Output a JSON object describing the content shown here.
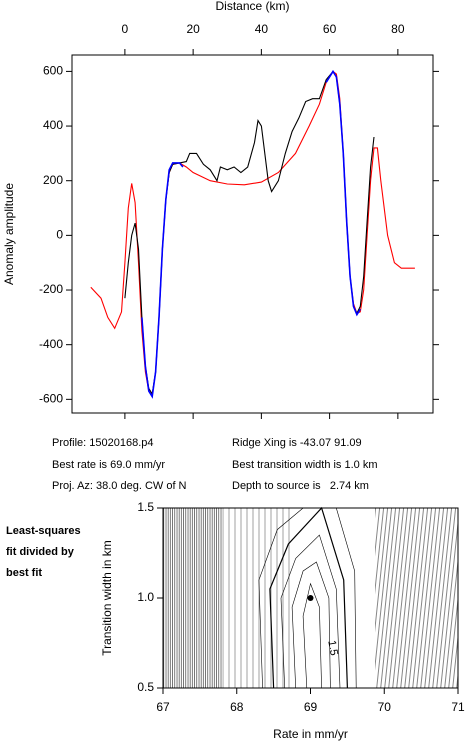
{
  "chart_data": [
    {
      "type": "line",
      "xlabel": "Distance (km)",
      "ylabel": "Anomaly amplitude",
      "xlim": [
        -15.5,
        90.3
      ],
      "ylim": [
        -650,
        660
      ],
      "xticks": [
        0,
        20,
        40,
        60,
        80
      ],
      "yticks": [
        -600,
        -400,
        -200,
        0,
        200,
        400,
        600
      ],
      "series": [
        {
          "color": "#ff0000",
          "x": [
            -10,
            -7,
            -5,
            -3,
            -1,
            0,
            1,
            2,
            3,
            4,
            5,
            6,
            7,
            8,
            9,
            10,
            11,
            12,
            13,
            14,
            16,
            18,
            20,
            25,
            30,
            35,
            40,
            45,
            50,
            54,
            57,
            59,
            61,
            62,
            63,
            64,
            65,
            66,
            67,
            68,
            69,
            70,
            71,
            72,
            73,
            74,
            75,
            77,
            79,
            81,
            85
          ],
          "values": [
            -190,
            -230,
            -300,
            -340,
            -280,
            -100,
            100,
            190,
            120,
            -100,
            -350,
            -500,
            -570,
            -585,
            -500,
            -300,
            -50,
            130,
            230,
            260,
            265,
            250,
            230,
            200,
            188,
            185,
            195,
            230,
            300,
            400,
            480,
            560,
            600,
            590,
            500,
            300,
            50,
            -150,
            -250,
            -285,
            -280,
            -200,
            0,
            200,
            320,
            320,
            200,
            0,
            -100,
            -120,
            -120
          ]
        },
        {
          "color": "#000000",
          "x": [
            0,
            1,
            2,
            3,
            4,
            5,
            6,
            7,
            8,
            9,
            10,
            11,
            12,
            13,
            14,
            16,
            18,
            19,
            21,
            23,
            25,
            27,
            28,
            30,
            32,
            34,
            36,
            38,
            39,
            40,
            41,
            42,
            43,
            45,
            47,
            49,
            51,
            53,
            55,
            57,
            59,
            61,
            62,
            63,
            64,
            65,
            66,
            67,
            68,
            69,
            70,
            71,
            72,
            73
          ],
          "values": [
            -230,
            -100,
            0,
            45,
            -50,
            -300,
            -480,
            -560,
            -580,
            -500,
            -300,
            -50,
            130,
            230,
            260,
            265,
            270,
            300,
            300,
            260,
            240,
            200,
            250,
            240,
            250,
            230,
            250,
            340,
            420,
            400,
            300,
            200,
            160,
            200,
            300,
            380,
            430,
            490,
            500,
            500,
            570,
            600,
            580,
            480,
            300,
            50,
            -150,
            -260,
            -285,
            -260,
            -150,
            50,
            250,
            360
          ]
        },
        {
          "color": "#0000ff",
          "x": [
            5,
            6,
            7,
            8,
            9,
            10,
            11,
            12,
            13,
            14,
            16,
            17,
            null,
            59,
            61,
            62,
            63,
            64,
            65,
            66,
            67,
            68,
            69
          ],
          "values": [
            -300,
            -480,
            -570,
            -590,
            -500,
            -300,
            -50,
            130,
            240,
            265,
            265,
            250,
            null,
            560,
            600,
            580,
            480,
            300,
            50,
            -150,
            -260,
            -290,
            -270
          ]
        }
      ]
    },
    {
      "type": "contour",
      "xlabel": "Rate in mm/yr",
      "ylabel": "Transition width in km",
      "xlim": [
        67,
        71
      ],
      "ylim": [
        0.5,
        1.5
      ],
      "xticks": [
        67,
        68,
        69,
        70,
        71
      ],
      "yticks": [
        0.5,
        {
          "value": 1,
          "label": "1.0"
        },
        1.5
      ],
      "point": {
        "x": 69,
        "y": 1.0
      },
      "annotation": "1.5",
      "contours": [
        {
          "x": [
            68.95,
            68.9,
            69.0,
            69.12,
            69.15
          ],
          "y": [
            0.5,
            0.9,
            1.08,
            0.95,
            0.5
          ]
        },
        {
          "x": [
            68.8,
            68.75,
            68.9,
            69.08,
            69.25,
            69.27
          ],
          "y": [
            0.5,
            0.95,
            1.15,
            1.2,
            1.0,
            0.5
          ]
        },
        {
          "x": [
            68.65,
            68.6,
            68.8,
            69.12,
            69.35,
            69.4
          ],
          "y": [
            0.5,
            1.0,
            1.22,
            1.35,
            1.05,
            0.5
          ]
        },
        {
          "x": [
            68.5,
            68.45,
            68.7,
            69.15,
            69.45,
            69.5
          ],
          "y": [
            0.5,
            1.05,
            1.3,
            1.5,
            1.1,
            0.5
          ]
        },
        {
          "x": [
            68.35,
            68.3,
            68.55,
            68.9
          ],
          "y": [
            0.5,
            1.1,
            1.38,
            1.5
          ]
        },
        {
          "x": [
            69.35,
            69.6,
            69.62
          ],
          "y": [
            1.5,
            1.15,
            0.5
          ]
        }
      ]
    }
  ],
  "info": [
    "Profile: 15020168.p4",
    "Best rate is 69.0 mm/yr",
    "Proj. Az: 38.0 deg. CW of N",
    "Ridge Xing is -43.07 91.09",
    "Best transition width is 1.0 km",
    "Depth to source is   2.74 km"
  ],
  "side_note": [
    "Least-squares",
    "fit divided by",
    "best fit"
  ]
}
